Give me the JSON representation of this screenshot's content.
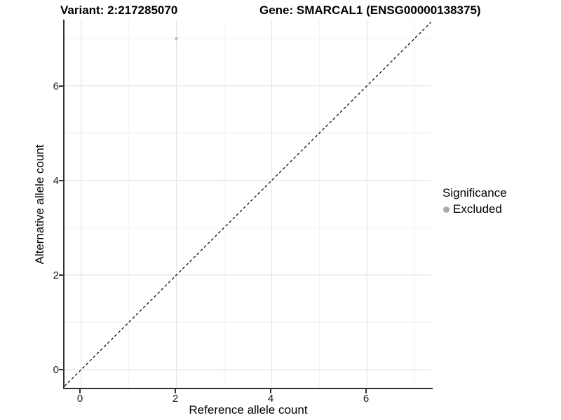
{
  "figure": {
    "variant_title": "Variant: 2:217285070",
    "gene_title": "Gene: SMARCAL1 (ENSG00000138375)"
  },
  "chart_data": {
    "type": "scatter",
    "title": "Variant: 2:217285070  /  Gene: SMARCAL1 (ENSG00000138375)",
    "xlabel": "Reference allele count",
    "ylabel": "Alternative allele count",
    "xlim": [
      -0.35,
      7.35
    ],
    "ylim": [
      -0.4,
      7.4
    ],
    "x_ticks": [
      0,
      2,
      4,
      6
    ],
    "y_ticks": [
      0,
      2,
      4,
      6
    ],
    "x_minor_ticks": [
      1,
      3,
      5,
      7
    ],
    "y_minor_ticks": [
      1,
      3,
      5,
      7
    ],
    "grid": "major+minor",
    "points": [
      {
        "x": 2,
        "y": 7,
        "series": "Excluded",
        "color": "#bdbdbd"
      }
    ],
    "reference_line": {
      "type": "identity",
      "slope": 1,
      "intercept": 0,
      "style": "dashed",
      "color": "#000000"
    },
    "legend": {
      "title": "Significance",
      "position": "right",
      "entries": [
        {
          "label": "Excluded",
          "color": "#a9a9a9",
          "marker": "circle"
        }
      ]
    },
    "colors": {
      "grid_major": "#e5e5e5",
      "grid_minor": "#f1f1f1",
      "axis_line": "#333333",
      "background": "#ffffff"
    }
  }
}
